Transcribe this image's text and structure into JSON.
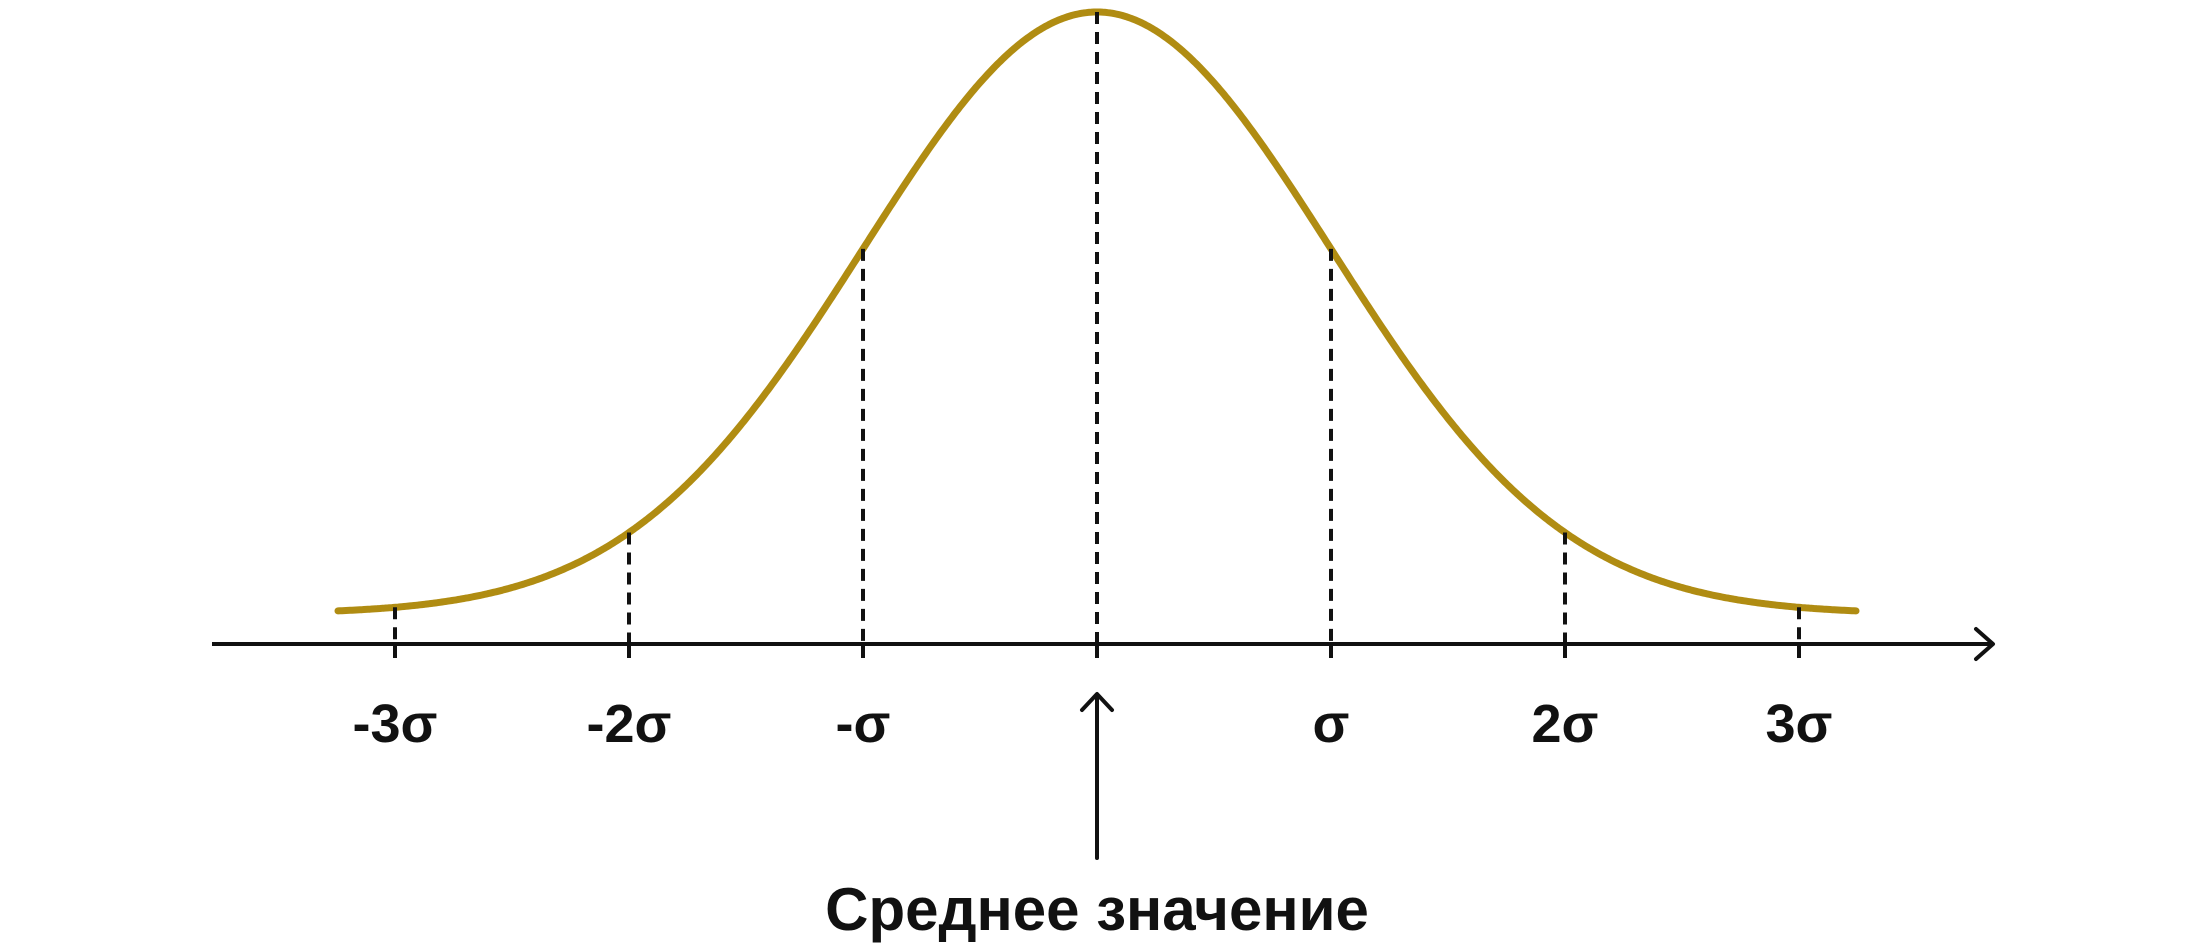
{
  "diagram": {
    "curve_color": "#B08C12",
    "line_color": "#111111",
    "sigma_markers": [
      {
        "sigma": -3,
        "label": "-3σ"
      },
      {
        "sigma": -2,
        "label": "-2σ"
      },
      {
        "sigma": -1,
        "label": "-σ"
      },
      {
        "sigma": 0,
        "label": ""
      },
      {
        "sigma": 1,
        "label": "σ"
      },
      {
        "sigma": 2,
        "label": "2σ"
      },
      {
        "sigma": 3,
        "label": "3σ"
      }
    ],
    "mean_label": "Среднее значение"
  }
}
